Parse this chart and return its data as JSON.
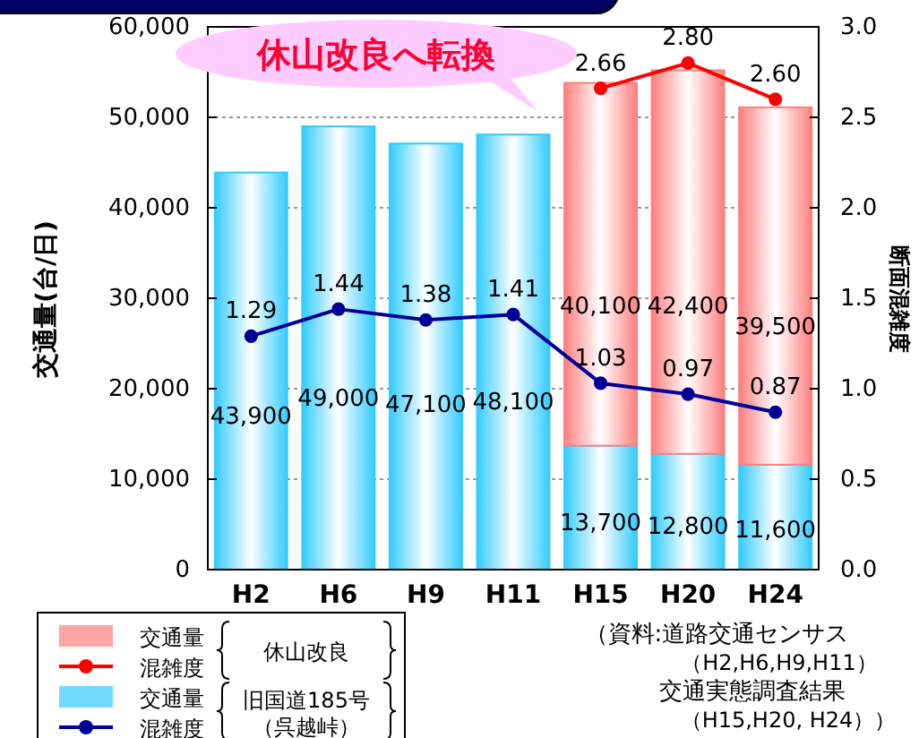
{
  "chart_data": {
    "type": "bar",
    "stacked": true,
    "categories": [
      "H2",
      "H6",
      "H9",
      "H11",
      "H15",
      "H20",
      "H24"
    ],
    "series": [
      {
        "name": "交通量",
        "color": "#33ccff",
        "values": [
          43900,
          49000,
          47100,
          48100,
          13700,
          12800,
          11600
        ],
        "value_labels": [
          "43,900",
          "49,000",
          "47,100",
          "48,100",
          "13,700",
          "12,800",
          "11,600"
        ]
      },
      {
        "name": "交通量",
        "color": "#ff7f7f",
        "values": [
          null,
          null,
          null,
          null,
          40100,
          42400,
          39500
        ],
        "value_labels": [
          null,
          null,
          null,
          null,
          "40,100",
          "42,400",
          "39,500"
        ]
      },
      {
        "name": "混雑度",
        "type": "line",
        "axis": "y2",
        "color": "#000099",
        "values": [
          1.29,
          1.44,
          1.38,
          1.41,
          1.03,
          0.97,
          0.87
        ],
        "value_labels": [
          "1.29",
          "1.44",
          "1.38",
          "1.41",
          "1.03",
          "0.97",
          "0.87"
        ]
      },
      {
        "name": "混雑度",
        "type": "line",
        "axis": "y2",
        "color": "#ff0000",
        "values": [
          null,
          null,
          null,
          null,
          2.66,
          2.8,
          2.6
        ],
        "value_labels": [
          null,
          null,
          null,
          null,
          "2.66",
          "2.80",
          "2.60"
        ]
      }
    ],
    "ylabel": "交通量(台/日)",
    "y2label": "断面混雑度",
    "ylim": [
      0,
      60000
    ],
    "yticks": [
      {
        "value": 0,
        "label": "0"
      },
      {
        "value": 10000,
        "label": "10,000"
      },
      {
        "value": 20000,
        "label": "20,000"
      },
      {
        "value": 30000,
        "label": "30,000"
      },
      {
        "value": 40000,
        "label": "40,000"
      },
      {
        "value": 50000,
        "label": "50,000"
      },
      {
        "value": 60000,
        "label": "60,000"
      }
    ],
    "y2lim": [
      0,
      3
    ],
    "y2ticks": [
      {
        "value": 0,
        "label": "0.0"
      },
      {
        "value": 0.5,
        "label": "0.5"
      },
      {
        "value": 1,
        "label": "1.0"
      },
      {
        "value": 1.5,
        "label": "1.5"
      },
      {
        "value": 2,
        "label": "2.0"
      },
      {
        "value": 2.5,
        "label": "2.5"
      },
      {
        "value": 3,
        "label": "3.0"
      }
    ],
    "grid": "y",
    "marker": "circle",
    "line_style": "solid",
    "legend": "bottom left",
    "annotations": [
      "休山改良へ転換",
      "休山改良",
      "旧国道185号",
      "（呉越峠）",
      "（資料:道路交通センサス",
      "（H2,H6,H9,H11）",
      "交通実態調査結果",
      "（H15,H20, H24））"
    ]
  }
}
